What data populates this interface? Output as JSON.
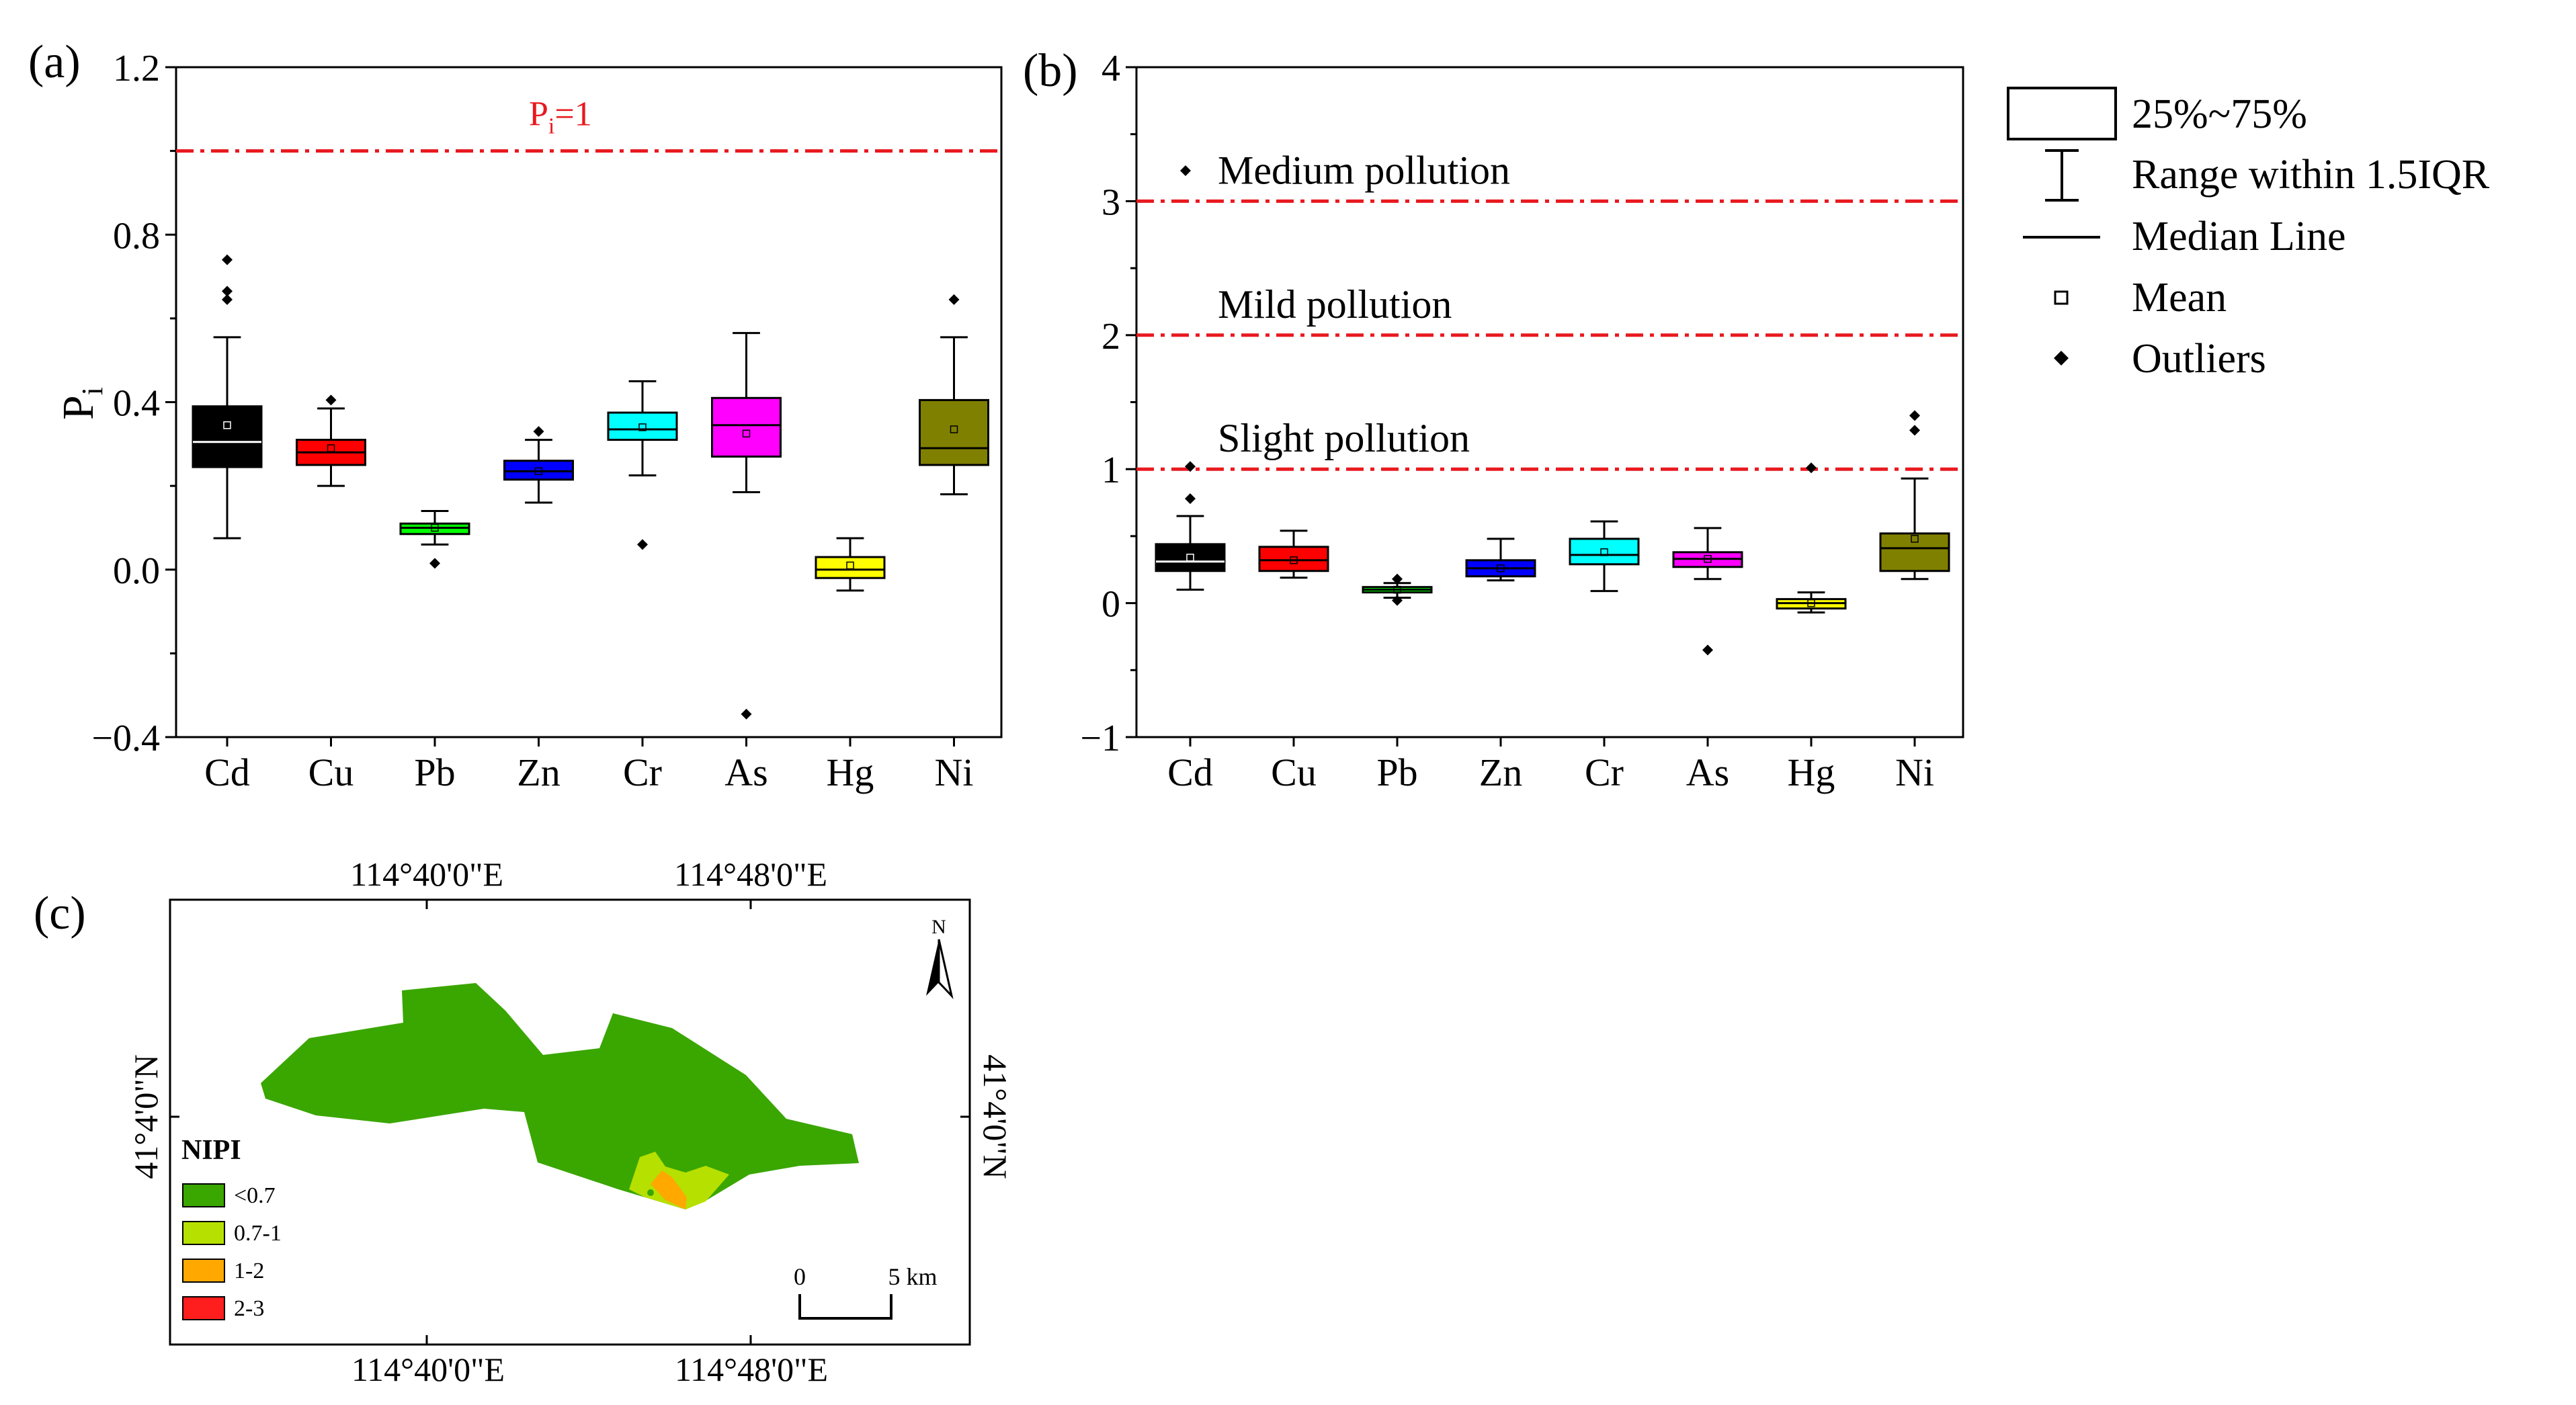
{
  "panel_labels": {
    "a": "(a)",
    "b": "(b)",
    "c": "(c)"
  },
  "legend": {
    "box": "25%~75%",
    "whisker": "Range within 1.5IQR",
    "median": "Median Line",
    "mean": "Mean",
    "outliers": "Outliers"
  },
  "chart_data": [
    {
      "type": "box",
      "panel": "a",
      "ylabel": "Pi",
      "ylabel_main": "P",
      "ylabel_sub": "i",
      "ylim": [
        -0.4,
        1.2
      ],
      "yticks": [
        -0.4,
        0.0,
        0.4,
        0.8,
        1.2
      ],
      "ytick_labels": [
        "−0.4",
        "0.0",
        "0.4",
        "0.8",
        "1.2"
      ],
      "reference_line": {
        "value": 1.0,
        "label_main": "P",
        "label_sub": "i",
        "label_rest": "=1",
        "color": "#e8191f"
      },
      "categories": [
        "Cd",
        "Cu",
        "Pb",
        "Zn",
        "Cr",
        "As",
        "Hg",
        "Ni"
      ],
      "boxes": [
        {
          "name": "Cd",
          "q1": 0.245,
          "median": 0.305,
          "q3": 0.39,
          "low": 0.075,
          "high": 0.555,
          "mean": 0.345,
          "outliers": [
            0.74,
            0.665,
            0.645
          ],
          "color": "#000000",
          "median_color": "#ffffff"
        },
        {
          "name": "Cu",
          "q1": 0.25,
          "median": 0.28,
          "q3": 0.31,
          "low": 0.2,
          "high": 0.385,
          "mean": 0.29,
          "outliers": [
            0.405
          ],
          "color": "#ff0000",
          "median_color": "#000000"
        },
        {
          "name": "Pb",
          "q1": 0.085,
          "median": 0.1,
          "q3": 0.11,
          "low": 0.06,
          "high": 0.14,
          "mean": 0.1,
          "outliers": [
            0.015
          ],
          "color": "#00ff00",
          "median_color": "#000000"
        },
        {
          "name": "Zn",
          "q1": 0.215,
          "median": 0.235,
          "q3": 0.26,
          "low": 0.16,
          "high": 0.31,
          "mean": 0.235,
          "outliers": [
            0.33
          ],
          "color": "#0000ff",
          "median_color": "#000000"
        },
        {
          "name": "Cr",
          "q1": 0.31,
          "median": 0.335,
          "q3": 0.375,
          "low": 0.225,
          "high": 0.45,
          "mean": 0.34,
          "outliers": [
            0.06
          ],
          "color": "#00ffff",
          "median_color": "#000000"
        },
        {
          "name": "As",
          "q1": 0.27,
          "median": 0.345,
          "q3": 0.41,
          "low": 0.185,
          "high": 0.565,
          "mean": 0.325,
          "outliers": [
            -0.345
          ],
          "color": "#ff00ff",
          "median_color": "#000000"
        },
        {
          "name": "Hg",
          "q1": -0.02,
          "median": 0.0,
          "q3": 0.03,
          "low": -0.05,
          "high": 0.075,
          "mean": 0.01,
          "outliers": [],
          "color": "#ffff00",
          "median_color": "#000000"
        },
        {
          "name": "Ni",
          "q1": 0.25,
          "median": 0.29,
          "q3": 0.405,
          "low": 0.18,
          "high": 0.555,
          "mean": 0.335,
          "outliers": [
            0.645
          ],
          "color": "#808000",
          "median_color": "#000000"
        }
      ]
    },
    {
      "type": "box",
      "panel": "b",
      "ylim": [
        -1,
        4
      ],
      "yticks": [
        -1,
        0,
        1,
        2,
        3,
        4
      ],
      "ytick_labels": [
        "−1",
        "0",
        "1",
        "2",
        "3",
        "4"
      ],
      "reference_lines": [
        {
          "value": 3,
          "label": "Medium pollution",
          "color": "#e8191f"
        },
        {
          "value": 2,
          "label": "Mild pollution",
          "color": "#e8191f"
        },
        {
          "value": 1,
          "label": "Slight pollution",
          "color": "#e8191f"
        }
      ],
      "categories": [
        "Cd",
        "Cu",
        "Pb",
        "Zn",
        "Cr",
        "As",
        "Hg",
        "Ni"
      ],
      "boxes": [
        {
          "name": "Cd",
          "q1": 0.24,
          "median": 0.31,
          "q3": 0.44,
          "low": 0.1,
          "high": 0.65,
          "mean": 0.34,
          "outliers": [
            1.02,
            0.78
          ],
          "color": "#000000",
          "median_color": "#ffffff"
        },
        {
          "name": "Cu",
          "q1": 0.24,
          "median": 0.32,
          "q3": 0.42,
          "low": 0.19,
          "high": 0.54,
          "mean": 0.32,
          "outliers": [],
          "color": "#ff0000",
          "median_color": "#000000"
        },
        {
          "name": "Pb",
          "q1": 0.08,
          "median": 0.1,
          "q3": 0.12,
          "low": 0.04,
          "high": 0.15,
          "mean": 0.1,
          "outliers": [
            0.18,
            0.02
          ],
          "color": "#00ff00",
          "median_color": "#000000"
        },
        {
          "name": "Zn",
          "q1": 0.2,
          "median": 0.26,
          "q3": 0.32,
          "low": 0.17,
          "high": 0.48,
          "mean": 0.26,
          "outliers": [],
          "color": "#0000ff",
          "median_color": "#000000"
        },
        {
          "name": "Cr",
          "q1": 0.29,
          "median": 0.36,
          "q3": 0.48,
          "low": 0.09,
          "high": 0.61,
          "mean": 0.38,
          "outliers": [],
          "color": "#00ffff",
          "median_color": "#000000"
        },
        {
          "name": "As",
          "q1": 0.27,
          "median": 0.33,
          "q3": 0.38,
          "low": 0.18,
          "high": 0.56,
          "mean": 0.33,
          "outliers": [
            -0.35
          ],
          "color": "#ff00ff",
          "median_color": "#000000"
        },
        {
          "name": "Hg",
          "q1": -0.04,
          "median": 0.0,
          "q3": 0.03,
          "low": -0.07,
          "high": 0.08,
          "mean": 0.0,
          "outliers": [
            1.01
          ],
          "color": "#ffff00",
          "median_color": "#000000"
        },
        {
          "name": "Ni",
          "q1": 0.24,
          "median": 0.41,
          "q3": 0.52,
          "low": 0.18,
          "high": 0.93,
          "mean": 0.48,
          "outliers": [
            1.4,
            1.29
          ],
          "color": "#808000",
          "median_color": "#000000"
        }
      ]
    },
    {
      "type": "map",
      "panel": "c",
      "top_ticks": [
        "114°40'0\"E",
        "114°48'0\"E"
      ],
      "bottom_ticks": [
        "114°40'0\"E",
        "114°48'0\"E"
      ],
      "left_tick": "41°4'0\"N",
      "right_tick": "41°4'0\"N",
      "north_label": "N",
      "scale": {
        "zero": "0",
        "end": "5 km"
      },
      "legend_title": "NIPI",
      "classes": [
        {
          "label": "<0.7",
          "color": "#3aa600"
        },
        {
          "label": "0.7-1",
          "color": "#b6e000"
        },
        {
          "label": "1-2",
          "color": "#ffa800"
        },
        {
          "label": "2-3",
          "color": "#ff1e1e"
        }
      ]
    }
  ]
}
